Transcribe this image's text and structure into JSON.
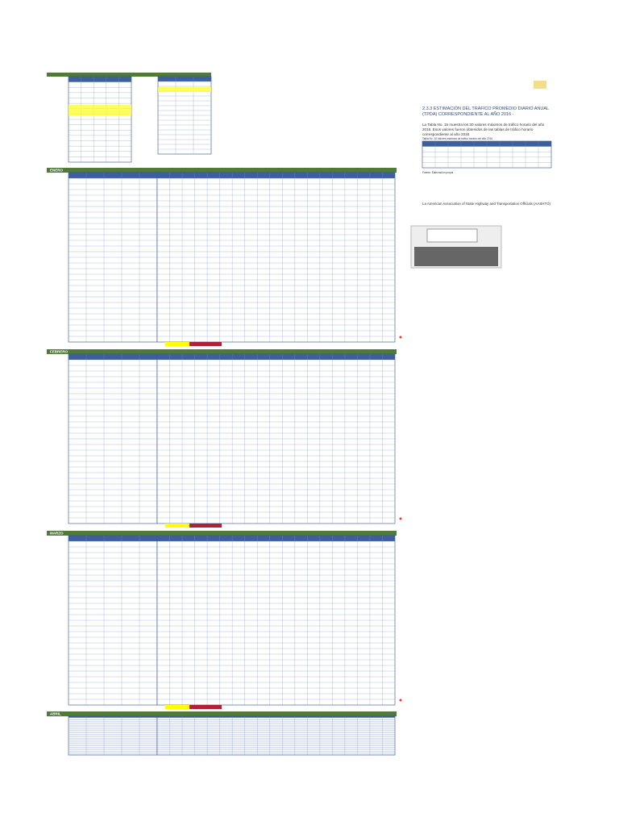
{
  "months": [
    "ENERO",
    "FEBRERO",
    "MARZO",
    "ABRIL"
  ],
  "document": {
    "heading": "2.3.3 ESTIMACIÓN DEL TRÁFICO PROMEDIO DIARIO ANUAL (TPDA) CORRESPONDIENTE AL AÑO 2016 -",
    "paragraph": "La Tabla No. 15 muestra los 30 valores máximos de tráfico horario del año 2016. Esos valores fueron obtenidos de las tablas de tráfico horario correspondiente al año 2016",
    "table_caption": "Tabla No. 15   Valores máximos de tráfico horario del año 2016",
    "source": "Fuente: Elaboración propia",
    "aashto": "La American Association of State Highway and Transportation Officials (AASHTO)"
  }
}
